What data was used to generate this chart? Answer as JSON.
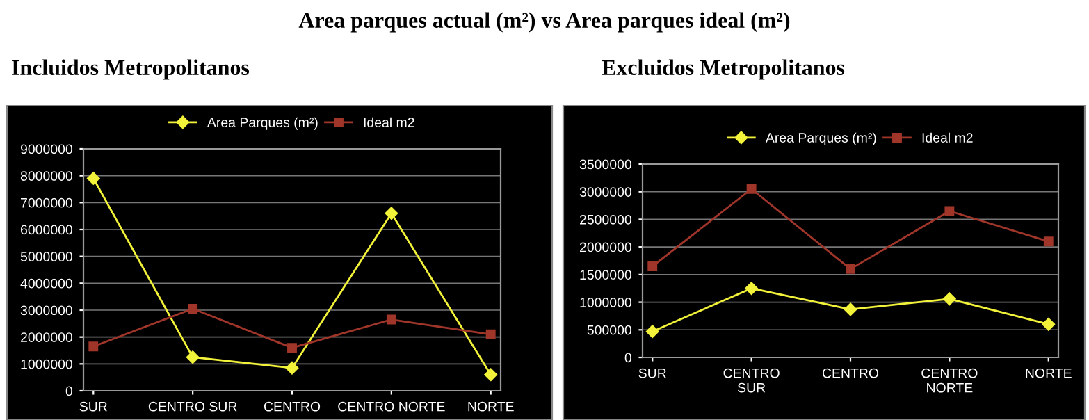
{
  "chart_data": [
    {
      "type": "line",
      "title": "Incluidos Metropolitanos",
      "annotations": [
        "Area parques actual (m²) vs Area parques ideal (m²)"
      ],
      "categories": [
        "SUR",
        "CENTRO SUR",
        "CENTRO",
        "CENTRO NORTE",
        "NORTE"
      ],
      "series": [
        {
          "name": "Area Parques (m²)",
          "color": "#f2f23a",
          "marker": "diamond",
          "values": [
            7900000,
            1250000,
            850000,
            6600000,
            600000
          ]
        },
        {
          "name": "Ideal m2",
          "color": "#a0352a",
          "marker": "square",
          "values": [
            1650000,
            3050000,
            1600000,
            2650000,
            2100000
          ]
        }
      ],
      "ylim": [
        0,
        9000000
      ],
      "yticks": [
        0,
        1000000,
        2000000,
        3000000,
        4000000,
        5000000,
        6000000,
        7000000,
        8000000,
        9000000
      ],
      "grid": "y",
      "legend": "top",
      "line_style": "solid"
    },
    {
      "type": "line",
      "title": "Excluidos Metropolitanos",
      "categories": [
        "SUR",
        "CENTRO\nSUR",
        "CENTRO",
        "CENTRO\nNORTE",
        "NORTE"
      ],
      "series": [
        {
          "name": "Area Parques (m²)",
          "color": "#f2f23a",
          "marker": "diamond",
          "values": [
            470000,
            1250000,
            870000,
            1060000,
            600000
          ]
        },
        {
          "name": "Ideal m2",
          "color": "#a0352a",
          "marker": "square",
          "values": [
            1650000,
            3050000,
            1600000,
            2650000,
            2100000
          ]
        }
      ],
      "ylim": [
        0,
        3500000
      ],
      "yticks": [
        0,
        500000,
        1000000,
        1500000,
        2000000,
        2500000,
        3000000,
        3500000
      ],
      "grid": "y",
      "legend": "top",
      "line_style": "solid"
    }
  ]
}
